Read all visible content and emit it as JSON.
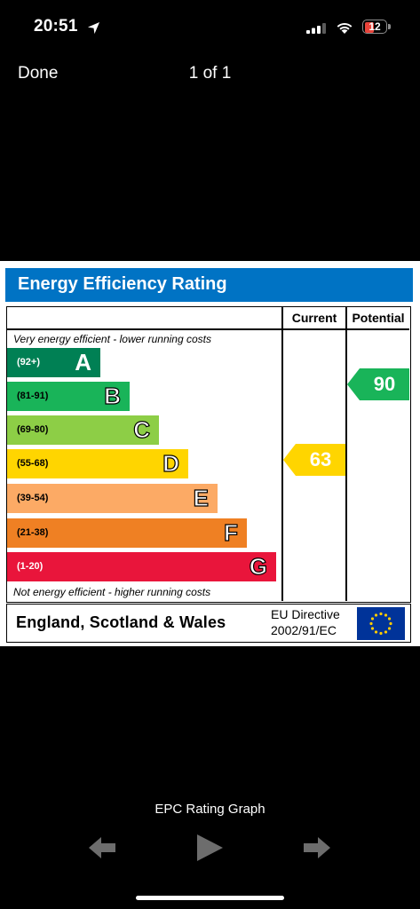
{
  "status_bar": {
    "time": "20:51",
    "battery": "12"
  },
  "nav": {
    "done_label": "Done",
    "page_count": "1 of 1"
  },
  "epc": {
    "title": "Energy Efficiency Rating",
    "col_current": "Current",
    "col_potential": "Potential",
    "top_caption": "Very energy efficient - lower running costs",
    "bottom_caption": "Not energy efficient - higher running costs",
    "bands": [
      {
        "range": "(92+)",
        "letter": "A",
        "color": "#008054"
      },
      {
        "range": "(81-91)",
        "letter": "B",
        "color": "#19b459"
      },
      {
        "range": "(69-80)",
        "letter": "C",
        "color": "#8dce46"
      },
      {
        "range": "(55-68)",
        "letter": "D",
        "color": "#ffd500"
      },
      {
        "range": "(39-54)",
        "letter": "E",
        "color": "#fcaa65"
      },
      {
        "range": "(21-38)",
        "letter": "F",
        "color": "#ef8023"
      },
      {
        "range": "(1-20)",
        "letter": "G",
        "color": "#e9153b"
      }
    ],
    "current": {
      "value": "63",
      "color": "#ffd500"
    },
    "potential": {
      "value": "90",
      "color": "#19b459"
    },
    "region": "England, Scotland & Wales",
    "directive_line1": "EU Directive",
    "directive_line2": "2002/91/EC",
    "header_color": "#0073c4"
  },
  "media_caption": "EPC Rating Graph",
  "controls": {
    "prev_icon": "arrow-left-icon",
    "play_icon": "play-icon",
    "next_icon": "arrow-right-icon"
  }
}
